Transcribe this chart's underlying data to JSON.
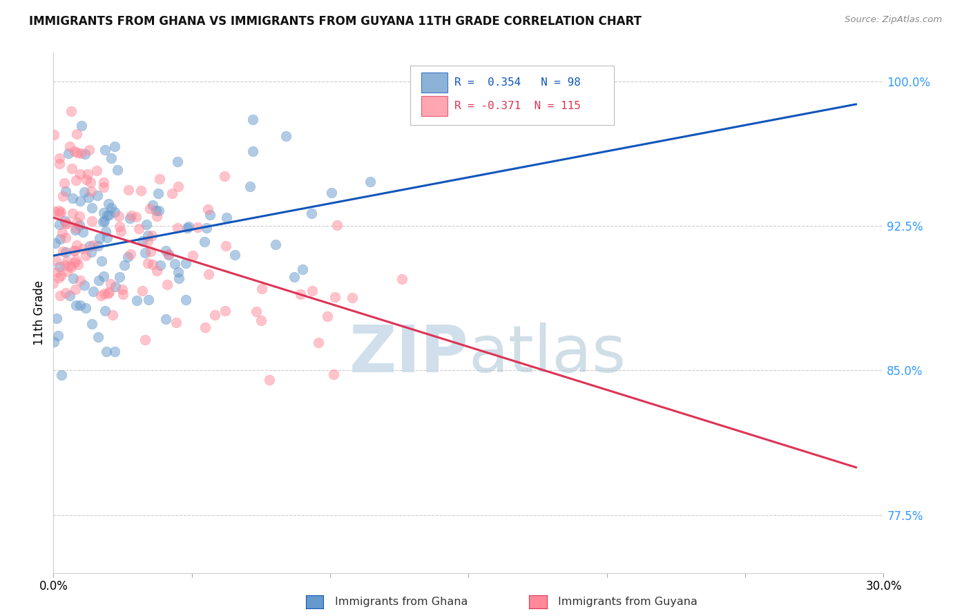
{
  "title": "IMMIGRANTS FROM GHANA VS IMMIGRANTS FROM GUYANA 11TH GRADE CORRELATION CHART",
  "source": "Source: ZipAtlas.com",
  "ylabel": "11th Grade",
  "ylabel_ticks": [
    "77.5%",
    "85.0%",
    "92.5%",
    "100.0%"
  ],
  "ylabel_values": [
    0.775,
    0.85,
    0.925,
    1.0
  ],
  "xlim": [
    0.0,
    0.3
  ],
  "ylim": [
    0.745,
    1.015
  ],
  "ghana_R": 0.354,
  "ghana_N": 98,
  "guyana_R": -0.371,
  "guyana_N": 115,
  "ghana_color": "#6699cc",
  "guyana_color": "#ff8899",
  "ghana_line_color": "#1155bb",
  "guyana_line_color": "#dd3355",
  "background_color": "#ffffff",
  "watermark_color": "#c8dae8"
}
